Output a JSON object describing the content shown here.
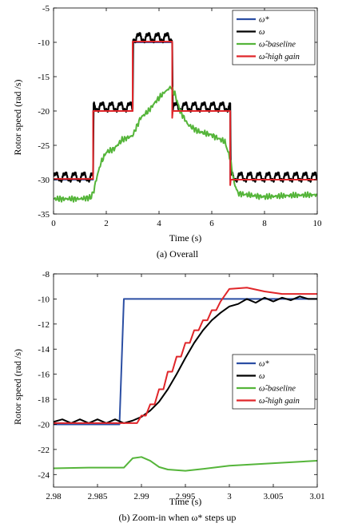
{
  "chart_data": [
    {
      "type": "line",
      "caption": "(a) Overall",
      "xlabel": "Time (s)",
      "ylabel": "Rotor speed (rad /s)",
      "xlim": [
        0,
        10
      ],
      "ylim": [
        -35,
        -5
      ],
      "xticks": [
        0,
        2,
        4,
        6,
        8,
        10
      ],
      "xtick_labels": [
        "0",
        "2",
        "4",
        "6",
        "8",
        "10"
      ],
      "yticks": [
        -35,
        -30,
        -25,
        -20,
        -15,
        -10,
        -5
      ],
      "ytick_labels": [
        "-35",
        "-30",
        "-25",
        "-20",
        "-15",
        "-10",
        "-5"
      ],
      "grid": false,
      "legend_position": "top-right",
      "series": [
        {
          "name": "ω*",
          "color": "#2b4ea3",
          "x": [
            0,
            1.5,
            1.5,
            3.0,
            3.0,
            4.5,
            4.5,
            6.7,
            6.7,
            10
          ],
          "y": [
            -30,
            -30,
            -20,
            -20,
            -10,
            -10,
            -20,
            -20,
            -30,
            -30
          ]
        },
        {
          "name": "ω",
          "color": "#000000",
          "style": "oscillating",
          "base_x": [
            0,
            1.5,
            1.52,
            3.0,
            3.02,
            4.5,
            4.52,
            6.7,
            6.72,
            10
          ],
          "base_y": [
            -29.6,
            -29.6,
            -19.4,
            -19.4,
            -9.3,
            -9.3,
            -19.4,
            -19.4,
            -29.6,
            -29.6
          ],
          "ripple_amplitude": 0.75,
          "ripple_period": 0.35
        },
        {
          "name": "ω̂-baseline",
          "color": "#55b53a",
          "x": [
            0,
            1.0,
            1.4,
            1.5,
            1.65,
            1.8,
            2.0,
            2.3,
            2.6,
            3.0,
            3.3,
            3.6,
            3.9,
            4.2,
            4.45,
            4.6,
            4.8,
            5.1,
            5.5,
            6.0,
            6.5,
            6.7,
            6.85,
            7.0,
            7.5,
            8.0,
            9.0,
            10.0
          ],
          "y": [
            -32.8,
            -32.8,
            -32.6,
            -32.0,
            -29.5,
            -27.5,
            -26.0,
            -25.5,
            -24.2,
            -23.6,
            -21.0,
            -20.0,
            -18.5,
            -17.3,
            -16.5,
            -17.5,
            -20.0,
            -22.0,
            -23.0,
            -23.5,
            -24.5,
            -27.0,
            -30.5,
            -32.0,
            -32.3,
            -32.5,
            -32.3,
            -32.2
          ]
        },
        {
          "name": "ω̂-high gain",
          "color": "#e0262a",
          "x": [
            0,
            1.5,
            1.5,
            3.0,
            3.0,
            4.5,
            4.5,
            4.52,
            6.7,
            6.7,
            6.72,
            10
          ],
          "y": [
            -29.9,
            -29.9,
            -20.0,
            -20.0,
            -9.9,
            -9.9,
            -21.0,
            -20.0,
            -20.0,
            -30.8,
            -30.0,
            -30.0
          ]
        }
      ]
    },
    {
      "type": "line",
      "caption": "(b) Zoom-in when ω* steps up",
      "xlabel": "Time (s)",
      "ylabel": "Rotor speed (rad /s)",
      "xlim": [
        2.98,
        3.01
      ],
      "ylim": [
        -25,
        -8
      ],
      "xticks": [
        2.98,
        2.985,
        2.99,
        2.995,
        3.0,
        3.005,
        3.01
      ],
      "xtick_labels": [
        "2.98",
        "2.985",
        "2.99",
        "2.995",
        "3",
        "3.005",
        "3.01"
      ],
      "yticks": [
        -24,
        -22,
        -20,
        -18,
        -16,
        -14,
        -12,
        -10,
        -8
      ],
      "ytick_labels": [
        "-24",
        "-22",
        "-20",
        "-18",
        "-16",
        "-14",
        "-12",
        "-10",
        "-8"
      ],
      "grid": false,
      "legend_position": "center-right",
      "series": [
        {
          "name": "ω*",
          "color": "#2b4ea3",
          "x": [
            2.98,
            2.9875,
            2.988,
            3.01
          ],
          "y": [
            -20,
            -20,
            -10,
            -10
          ]
        },
        {
          "name": "ω",
          "color": "#000000",
          "x": [
            2.98,
            2.981,
            2.982,
            2.983,
            2.984,
            2.985,
            2.986,
            2.987,
            2.988,
            2.989,
            2.99,
            2.991,
            2.992,
            2.993,
            2.994,
            2.995,
            2.996,
            2.997,
            2.998,
            2.999,
            3.0,
            3.001,
            3.002,
            3.003,
            3.004,
            3.005,
            3.006,
            3.007,
            3.008,
            3.009,
            3.01
          ],
          "y": [
            -19.8,
            -19.6,
            -19.9,
            -19.6,
            -19.9,
            -19.6,
            -19.9,
            -19.6,
            -19.9,
            -19.7,
            -19.4,
            -18.9,
            -18.2,
            -17.2,
            -16.0,
            -14.7,
            -13.5,
            -12.5,
            -11.7,
            -11.1,
            -10.6,
            -10.4,
            -10.0,
            -10.3,
            -9.9,
            -10.2,
            -9.9,
            -10.1,
            -9.8,
            -10.0,
            -10.0
          ]
        },
        {
          "name": "ω̂-baseline",
          "color": "#55b53a",
          "x": [
            2.98,
            2.984,
            2.988,
            2.989,
            2.99,
            2.991,
            2.992,
            2.993,
            2.995,
            2.997,
            3.0,
            3.005,
            3.01
          ],
          "y": [
            -23.5,
            -23.45,
            -23.45,
            -22.7,
            -22.6,
            -22.9,
            -23.4,
            -23.6,
            -23.7,
            -23.55,
            -23.3,
            -23.1,
            -22.9
          ]
        },
        {
          "name": "ω̂-high gain",
          "color": "#e0262a",
          "x": [
            2.98,
            2.9895,
            2.99,
            2.9905,
            2.991,
            2.9915,
            2.992,
            2.9925,
            2.993,
            2.9935,
            2.994,
            2.9945,
            2.995,
            2.9955,
            2.996,
            2.9965,
            2.997,
            2.9975,
            2.998,
            2.9985,
            2.999,
            2.9995,
            3.0,
            3.002,
            3.004,
            3.006,
            3.01
          ],
          "y": [
            -19.9,
            -19.9,
            -19.3,
            -19.3,
            -18.4,
            -18.4,
            -17.2,
            -17.2,
            -15.8,
            -15.8,
            -14.6,
            -14.6,
            -13.5,
            -13.5,
            -12.5,
            -12.5,
            -11.7,
            -11.7,
            -10.9,
            -10.9,
            -10.2,
            -9.7,
            -9.2,
            -9.1,
            -9.4,
            -9.6,
            -9.6
          ]
        }
      ]
    }
  ]
}
